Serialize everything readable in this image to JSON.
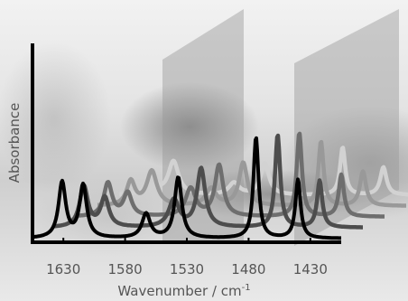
{
  "chart_data": {
    "type": "line",
    "title": "",
    "xlabel": "Wavenumber / cm",
    "xlabel_superscript": "-1",
    "ylabel": "Absorbance",
    "x_reversed": true,
    "xlim": [
      1655,
      1405
    ],
    "x_ticks": [
      1630,
      1580,
      1530,
      1480,
      1430
    ],
    "y_ticks": [],
    "grid": false,
    "legend": "none",
    "series_colors": [
      "#000000",
      "#4d4d4d",
      "#6e6e6e",
      "#999999",
      "#d2d2d2"
    ],
    "series": [
      {
        "peaks": [
          [
            1631,
            0.55,
            3.5
          ],
          [
            1614,
            0.52,
            3.5
          ],
          [
            1563,
            0.24,
            4
          ],
          [
            1537,
            0.6,
            3.5
          ],
          [
            1474,
            1.0,
            2.5
          ],
          [
            1440,
            0.58,
            2.5
          ]
        ]
      },
      {
        "peaks": [
          [
            1631,
            0.42,
            4
          ],
          [
            1614,
            0.3,
            4
          ],
          [
            1558,
            0.28,
            5
          ],
          [
            1536,
            0.6,
            4
          ],
          [
            1474,
            0.95,
            2.5
          ],
          [
            1440,
            0.48,
            2.5
          ]
        ]
      },
      {
        "peaks": [
          [
            1629,
            0.36,
            4
          ],
          [
            1613,
            0.25,
            4
          ],
          [
            1562,
            0.3,
            5
          ],
          [
            1539,
            0.55,
            4
          ],
          [
            1474,
            0.9,
            2.5
          ],
          [
            1440,
            0.45,
            2.5
          ]
        ]
      },
      {
        "peaks": [
          [
            1628,
            0.28,
            4
          ],
          [
            1611,
            0.4,
            5
          ],
          [
            1563,
            0.2,
            5
          ],
          [
            1537,
            0.5,
            4
          ],
          [
            1474,
            0.75,
            2.5
          ],
          [
            1440,
            0.4,
            3
          ]
        ]
      },
      {
        "peaks": [
          [
            1629,
            0.25,
            4
          ],
          [
            1611,
            0.42,
            5
          ],
          [
            1562,
            0.15,
            5
          ],
          [
            1537,
            0.4,
            4
          ],
          [
            1474,
            0.6,
            2.5
          ],
          [
            1441,
            0.35,
            3
          ]
        ]
      }
    ]
  }
}
